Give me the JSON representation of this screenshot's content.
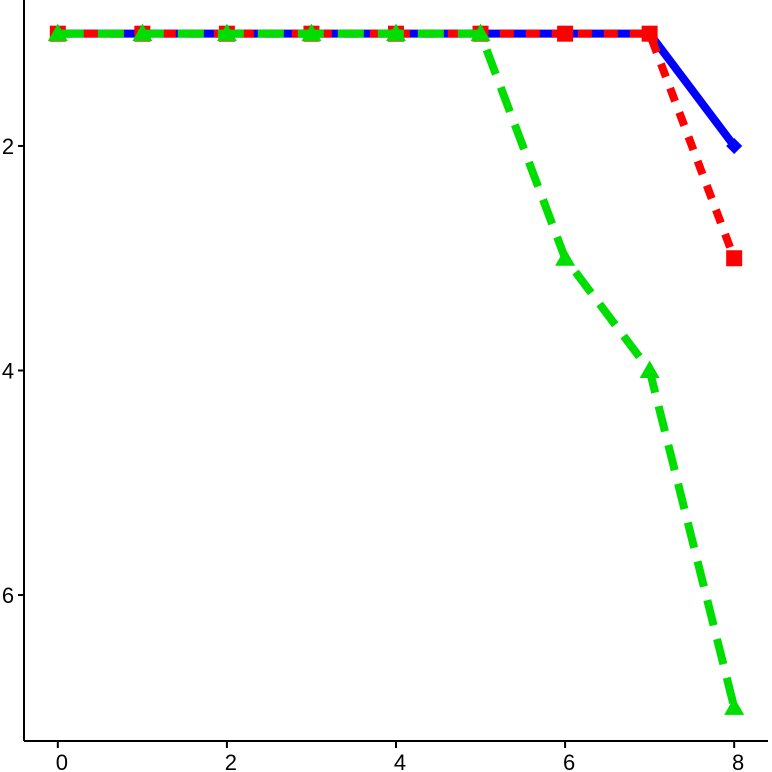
{
  "chart_data": {
    "type": "line",
    "x": [
      0,
      1,
      2,
      3,
      4,
      5,
      6,
      7,
      8
    ],
    "xlim": [
      -0.4,
      8.4
    ],
    "ylim": [
      0.7,
      7.3
    ],
    "y_inverted": true,
    "xticks": [
      0,
      2,
      4,
      6,
      8
    ],
    "yticks": [
      2,
      4,
      6
    ],
    "xtick_labels": [
      "0",
      "2",
      "4",
      "6",
      "8"
    ],
    "ytick_labels": [
      "2",
      "4",
      "6"
    ],
    "title": "",
    "xlabel": "",
    "ylabel": "",
    "grid": false,
    "series": [
      {
        "values": [
          1,
          1,
          1,
          1,
          1,
          1,
          1,
          1,
          2
        ],
        "color": "#0000ff",
        "line_style": "solid",
        "marker": "diamond"
      },
      {
        "values": [
          1,
          1,
          1,
          1,
          1,
          1,
          1,
          1,
          3
        ],
        "color": "#ff0000",
        "line_style": "dotted",
        "marker": "square"
      },
      {
        "values": [
          1,
          1,
          1,
          1,
          1,
          1,
          3,
          4,
          7
        ],
        "color": "#00dd00",
        "line_style": "dashed",
        "marker": "triangle"
      }
    ]
  }
}
